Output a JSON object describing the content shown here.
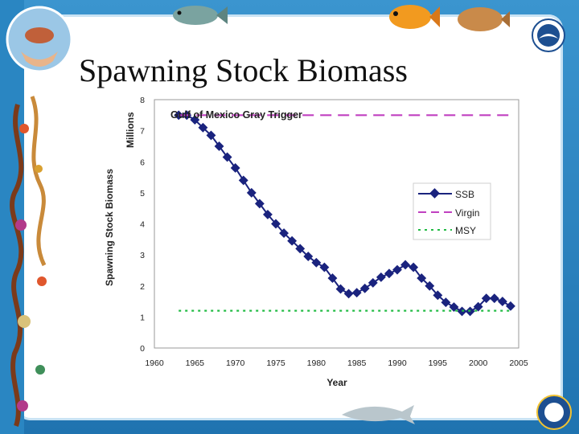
{
  "slide": {
    "title": "Spawning Stock Biomass"
  },
  "chart_data": {
    "type": "line",
    "title": "Gulf of Mexico Gray Trigger",
    "xlabel": "Year",
    "ylabel": "Spawning Stock Biomass",
    "yunit": "Millions",
    "xlim": [
      1960,
      2005
    ],
    "ylim": [
      0,
      8
    ],
    "xticks": [
      "1960",
      "1965",
      "1970",
      "1975",
      "1980",
      "1985",
      "1990",
      "1995",
      "2000",
      "2005"
    ],
    "yticks": [
      "0",
      "1",
      "2",
      "3",
      "4",
      "5",
      "6",
      "7",
      "8"
    ],
    "grid": false,
    "legend_position": "right",
    "series": [
      {
        "name": "SSB",
        "style": "solid-diamond",
        "color": "#1a237e",
        "x": [
          1963,
          1964,
          1965,
          1966,
          1967,
          1968,
          1969,
          1970,
          1971,
          1972,
          1973,
          1974,
          1975,
          1976,
          1977,
          1978,
          1979,
          1980,
          1981,
          1982,
          1983,
          1984,
          1985,
          1986,
          1987,
          1988,
          1989,
          1990,
          1991,
          1992,
          1993,
          1994,
          1995,
          1996,
          1997,
          1998,
          1999,
          2000,
          2001,
          2002,
          2003,
          2004
        ],
        "y": [
          7.5,
          7.5,
          7.35,
          7.1,
          6.85,
          6.5,
          6.15,
          5.8,
          5.4,
          5.0,
          4.65,
          4.3,
          4.0,
          3.7,
          3.45,
          3.2,
          2.95,
          2.75,
          2.6,
          2.25,
          1.9,
          1.75,
          1.78,
          1.92,
          2.1,
          2.28,
          2.4,
          2.52,
          2.68,
          2.6,
          2.25,
          2.0,
          1.7,
          1.47,
          1.32,
          1.18,
          1.18,
          1.33,
          1.6,
          1.6,
          1.5,
          1.35
        ]
      },
      {
        "name": "Virgin",
        "style": "dashed",
        "color": "#c040c0",
        "x": [
          1963,
          2004
        ],
        "y": [
          7.5,
          7.5
        ]
      },
      {
        "name": "MSY",
        "style": "dotted",
        "color": "#22bb44",
        "x": [
          1963,
          2004
        ],
        "y": [
          1.2,
          1.2
        ]
      }
    ]
  },
  "legend_labels": [
    "SSB",
    "Virgin",
    "MSY"
  ],
  "decor": {
    "logo_left": "hands-holding-fish-logo",
    "logo_right": "noaa-logo",
    "logo_bottom_right": "commerce-seal",
    "fish_top": [
      "striped-fish-icon",
      "orange-fish-icon",
      "flounder-icon"
    ],
    "fish_bottom": "dolphin-icon"
  }
}
